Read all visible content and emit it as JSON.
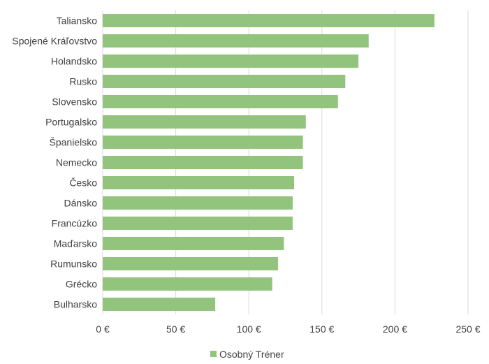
{
  "chart_data": {
    "type": "bar",
    "orientation": "horizontal",
    "title": "",
    "xlabel": "",
    "ylabel": "",
    "categories": [
      "Taliansko",
      "Spojené Kráľovstvo",
      "Holandsko",
      "Rusko",
      "Slovensko",
      "Portugalsko",
      "Španielsko",
      "Nemecko",
      "Česko",
      "Dánsko",
      "Francúzko",
      "Maďarsko",
      "Rumunsko",
      "Grécko",
      "Bulharsko"
    ],
    "series": [
      {
        "name": "Osobný Tréner",
        "values": [
          227,
          182,
          175,
          166,
          161,
          139,
          137,
          137,
          131,
          130,
          130,
          124,
          120,
          116,
          77
        ],
        "color": "#93c47d"
      }
    ],
    "xlim": [
      0,
      250
    ],
    "ticks": [
      0,
      50,
      100,
      150,
      200,
      250
    ],
    "tick_labels": [
      "0 €",
      "50 €",
      "100 €",
      "150 €",
      "200 €",
      "250 €"
    ],
    "grid": true,
    "legend": "bottom",
    "colors": {
      "bar": "#93c47d",
      "grid": "#d9d9d9",
      "text": "#404040"
    }
  }
}
